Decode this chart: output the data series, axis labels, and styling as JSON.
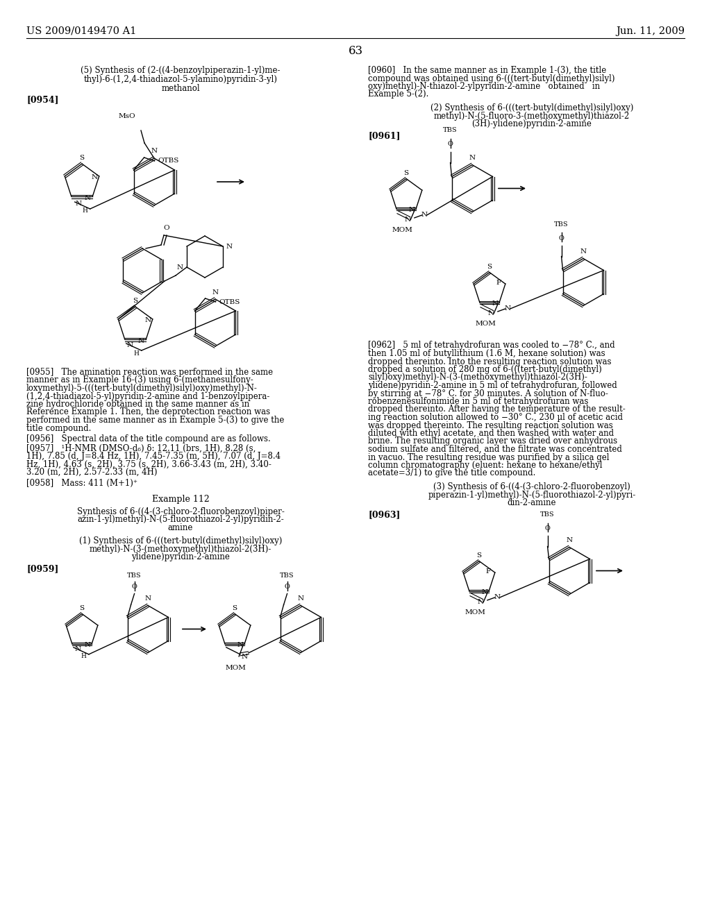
{
  "background_color": "#ffffff",
  "font_color": "#000000",
  "header_left": "US 2009/0149470 A1",
  "header_right": "Jun. 11, 2009",
  "page_number": "63"
}
